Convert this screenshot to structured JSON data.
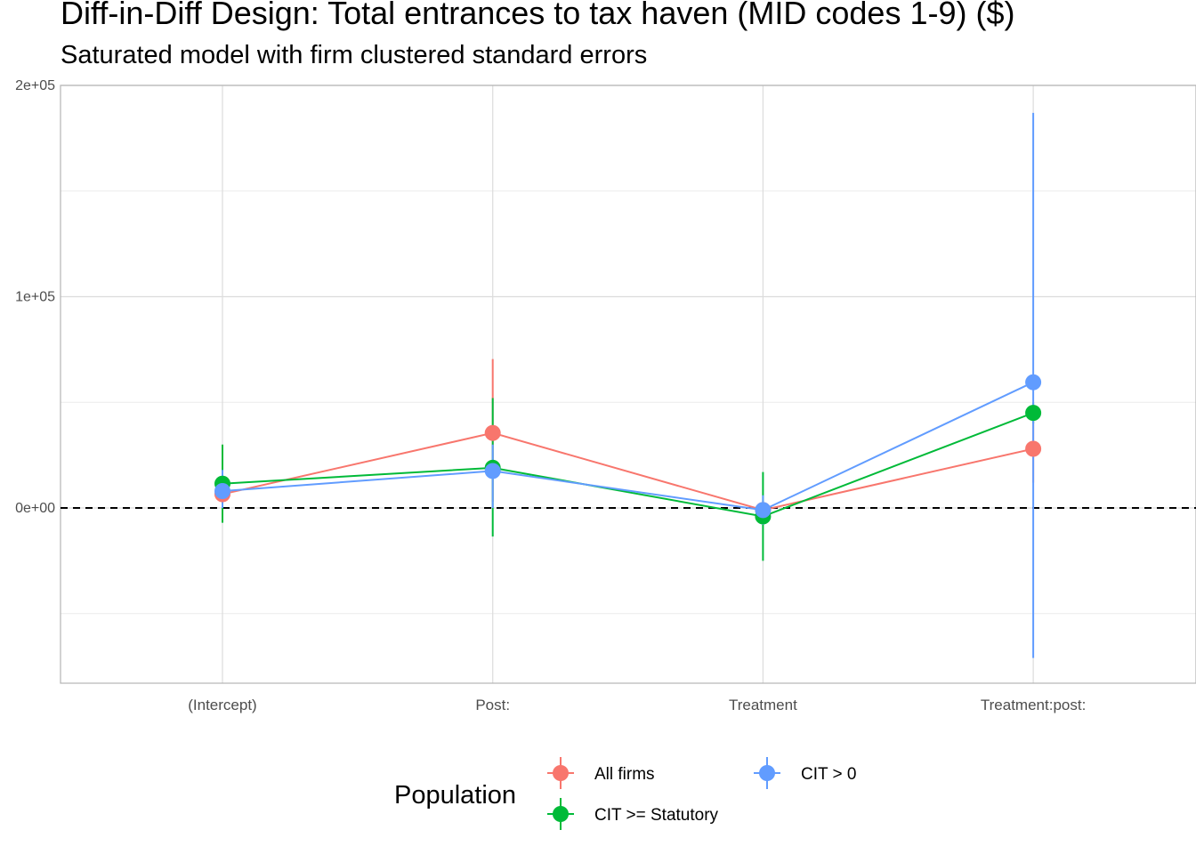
{
  "chart_data": {
    "type": "scatter",
    "title": "Diff-in-Diff Design: Total entrances to tax haven (MID codes 1-9)  ($)",
    "subtitle": "Saturated model with firm clustered standard errors",
    "xlabel": "",
    "ylabel": "",
    "categories": [
      "(Intercept)",
      "Post:",
      "Treatment",
      "Treatment:post:"
    ],
    "ylim": [
      -83000,
      200000
    ],
    "y_ticks": [
      0,
      100000,
      200000
    ],
    "y_tick_labels": [
      "0e+00",
      "1e+05",
      "2e+05"
    ],
    "reference_line": 0,
    "grid": true,
    "legend": {
      "title": "Population",
      "placement": "bottom",
      "entries": [
        "All firms",
        "CIT >= Statutory",
        "CIT > 0"
      ]
    },
    "series": [
      {
        "name": "All firms",
        "color": "#F8766D",
        "values": [
          6500,
          35500,
          -1000,
          28000
        ],
        "lower": [
          -2000,
          3000,
          -2000,
          12000
        ],
        "upper": [
          16000,
          70500,
          0,
          44000
        ]
      },
      {
        "name": "CIT >= Statutory",
        "color": "#00BA38",
        "values": [
          11500,
          19000,
          -4000,
          45000
        ],
        "lower": [
          -7000,
          -13500,
          -25000,
          40000
        ],
        "upper": [
          30000,
          52000,
          17000,
          50000
        ]
      },
      {
        "name": "CIT > 0",
        "color": "#619CFF",
        "values": [
          8000,
          17500,
          -1000,
          59500
        ],
        "lower": [
          0,
          0,
          -8000,
          -71000
        ],
        "upper": [
          18000,
          30000,
          6000,
          187000
        ]
      }
    ]
  }
}
